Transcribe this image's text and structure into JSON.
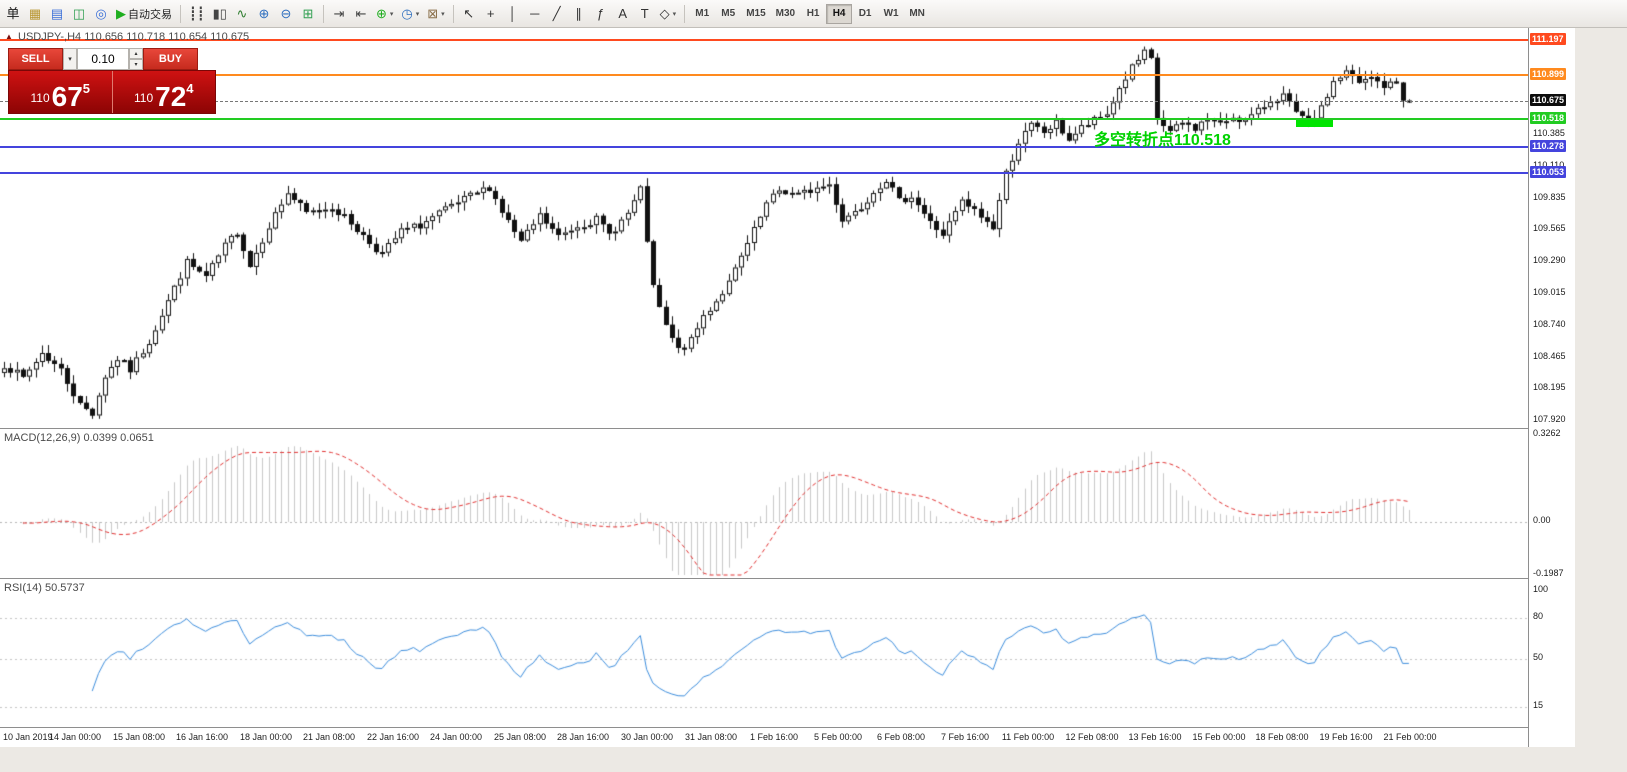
{
  "toolbar": {
    "auto_trading_label": "自动交易",
    "icon_groups": [
      {
        "items": [
          {
            "name": "new-order-button",
            "glyph": "单",
            "color": "#1a1a1a"
          },
          {
            "name": "new-chart-icon",
            "glyph": "▦",
            "color": "#b8952f"
          },
          {
            "name": "profiles-icon",
            "glyph": "▤",
            "color": "#3a6fd8"
          },
          {
            "name": "market-watch-icon",
            "glyph": "◫",
            "color": "#2e9e4f"
          },
          {
            "name": "navigator-icon",
            "glyph": "◎",
            "color": "#3a6fd8"
          },
          {
            "name": "auto-trading-button",
            "glyph": "▶",
            "color": "#1fae1f",
            "label": "自动交易"
          }
        ]
      },
      {
        "items": [
          {
            "name": "bar-chart-icon",
            "glyph": "┋┋",
            "color": "#444444"
          },
          {
            "name": "candle-chart-icon",
            "glyph": "▮▯",
            "color": "#444444"
          },
          {
            "name": "line-chart-icon",
            "glyph": "∿",
            "color": "#2f7d2f"
          },
          {
            "name": "zoom-in-icon",
            "glyph": "⊕",
            "color": "#2f6fbf"
          },
          {
            "name": "zoom-out-icon",
            "glyph": "⊖",
            "color": "#2f6fbf"
          },
          {
            "name": "grid-icon",
            "glyph": "⊞",
            "color": "#2e9e4f"
          }
        ]
      },
      {
        "items": [
          {
            "name": "auto-scroll-icon",
            "glyph": "⇥",
            "color": "#444444"
          },
          {
            "name": "chart-shift-icon",
            "glyph": "⇤",
            "color": "#444444"
          },
          {
            "name": "indicators-icon",
            "glyph": "⊕",
            "color": "#1fae1f",
            "dropdown": true
          },
          {
            "name": "periods-icon",
            "glyph": "◷",
            "color": "#2f6fbf",
            "dropdown": true
          },
          {
            "name": "templates-icon",
            "glyph": "⊠",
            "color": "#8a6f4a",
            "dropdown": true
          }
        ]
      },
      {
        "items": [
          {
            "name": "cursor-icon",
            "glyph": "↖",
            "color": "#333333"
          },
          {
            "name": "crosshair-icon",
            "glyph": "+",
            "color": "#333333"
          },
          {
            "name": "vertical-line-icon",
            "glyph": "│",
            "color": "#333333"
          },
          {
            "name": "horizontal-line-icon",
            "glyph": "─",
            "color": "#333333"
          },
          {
            "name": "trendline-icon",
            "glyph": "╱",
            "color": "#333333"
          },
          {
            "name": "channel-icon",
            "glyph": "∥",
            "color": "#333333"
          },
          {
            "name": "fibonacci-icon",
            "glyph": "ƒ",
            "color": "#333333"
          },
          {
            "name": "text-icon",
            "glyph": "A",
            "color": "#333333"
          },
          {
            "name": "arrows-icon",
            "glyph": "T",
            "color": "#333333"
          },
          {
            "name": "shapes-icon",
            "glyph": "◇",
            "color": "#333333",
            "dropdown": true
          }
        ]
      }
    ],
    "timeframes": [
      "M1",
      "M5",
      "M15",
      "M30",
      "H1",
      "H4",
      "D1",
      "W1",
      "MN"
    ],
    "active_timeframe": "H4",
    "right_icons": [
      {
        "name": "search-icon",
        "css": "lens"
      },
      {
        "name": "chart-profile-icon",
        "glyph": "▣",
        "color": "#3a6fd8"
      },
      {
        "name": "fullscreen-icon",
        "glyph": "▢",
        "color": "#555555"
      }
    ]
  },
  "chart": {
    "title": "USDJPY-,H4 110.656 110.718 110.654 110.675",
    "trade_panel": {
      "sell_label": "SELL",
      "buy_label": "BUY",
      "volume": "0.10",
      "sell": {
        "prefix": "110",
        "big": "67",
        "sup": "5"
      },
      "buy": {
        "prefix": "110",
        "big": "72",
        "sup": "4"
      }
    },
    "annotation": {
      "text": "多空转折点110.518",
      "color": "#00d200",
      "bar": 173,
      "price": 110.455
    },
    "green_marker": {
      "bar_start": 205,
      "bar_end": 210,
      "price": 110.505,
      "color": "#00e400"
    },
    "levels": [
      {
        "price": "111.197",
        "value": 111.197,
        "color": "#ff4a1f"
      },
      {
        "price": "110.899",
        "value": 110.899,
        "color": "#ff8a1e"
      },
      {
        "price": "110.518",
        "value": 110.518,
        "color": "#22cc22"
      },
      {
        "price": "110.278",
        "value": 110.278,
        "color": "#4444dd"
      },
      {
        "price": "110.053",
        "value": 110.053,
        "color": "#4444dd"
      }
    ],
    "current_price": {
      "price": "110.675",
      "value": 110.675,
      "bg": "#0d0d0d"
    },
    "price_axis": {
      "top_price": 111.197,
      "bottom_price": 107.92,
      "ticks": [
        {
          "label": "110.385",
          "value": 110.385
        },
        {
          "label": "110.110",
          "value": 110.11
        },
        {
          "label": "109.835",
          "value": 109.835
        },
        {
          "label": "109.565",
          "value": 109.565
        },
        {
          "label": "109.290",
          "value": 109.29
        },
        {
          "label": "109.015",
          "value": 109.015
        },
        {
          "label": "108.740",
          "value": 108.74
        },
        {
          "label": "108.465",
          "value": 108.465
        },
        {
          "label": "108.195",
          "value": 108.195
        },
        {
          "label": "107.920",
          "value": 107.92
        }
      ]
    },
    "chart_data": {
      "type": "candlestick",
      "symbol": "USDJPY",
      "timeframe": "H4",
      "bars": 224,
      "visible_range": {
        "high": 111.197,
        "low": 107.92
      },
      "ohlc_current": {
        "open": 110.656,
        "high": 110.718,
        "low": 110.654,
        "close": 110.675
      },
      "anchors": [
        [
          0,
          108.4
        ],
        [
          3,
          108.28
        ],
        [
          6,
          108.5
        ],
        [
          9,
          108.35
        ],
        [
          12,
          108.05
        ],
        [
          14,
          107.98
        ],
        [
          16,
          108.3
        ],
        [
          18,
          108.45
        ],
        [
          20,
          108.35
        ],
        [
          23,
          108.6
        ],
        [
          26,
          108.95
        ],
        [
          29,
          109.28
        ],
        [
          32,
          109.15
        ],
        [
          35,
          109.42
        ],
        [
          37,
          109.55
        ],
        [
          39,
          109.25
        ],
        [
          42,
          109.6
        ],
        [
          45,
          109.88
        ],
        [
          48,
          109.7
        ],
        [
          52,
          109.76
        ],
        [
          55,
          109.62
        ],
        [
          58,
          109.45
        ],
        [
          60,
          109.35
        ],
        [
          63,
          109.55
        ],
        [
          66,
          109.6
        ],
        [
          69,
          109.7
        ],
        [
          73,
          109.82
        ],
        [
          77,
          109.93
        ],
        [
          79,
          109.72
        ],
        [
          82,
          109.45
        ],
        [
          85,
          109.68
        ],
        [
          88,
          109.5
        ],
        [
          91,
          109.6
        ],
        [
          94,
          109.65
        ],
        [
          96,
          109.52
        ],
        [
          99,
          109.7
        ],
        [
          101,
          109.9
        ],
        [
          103,
          109.05
        ],
        [
          105,
          108.72
        ],
        [
          107,
          108.52
        ],
        [
          109,
          108.6
        ],
        [
          111,
          108.82
        ],
        [
          113,
          108.95
        ],
        [
          115,
          109.1
        ],
        [
          117,
          109.32
        ],
        [
          119,
          109.55
        ],
        [
          121,
          109.78
        ],
        [
          123,
          109.9
        ],
        [
          126,
          109.86
        ],
        [
          129,
          109.92
        ],
        [
          131,
          109.95
        ],
        [
          133,
          109.65
        ],
        [
          136,
          109.76
        ],
        [
          138,
          109.9
        ],
        [
          140,
          110.0
        ],
        [
          142,
          109.8
        ],
        [
          144,
          109.86
        ],
        [
          147,
          109.62
        ],
        [
          149,
          109.52
        ],
        [
          152,
          109.8
        ],
        [
          154,
          109.72
        ],
        [
          157,
          109.58
        ],
        [
          159,
          110.05
        ],
        [
          161,
          110.32
        ],
        [
          163,
          110.46
        ],
        [
          165,
          110.4
        ],
        [
          167,
          110.48
        ],
        [
          169,
          110.34
        ],
        [
          171,
          110.44
        ],
        [
          173,
          110.5
        ],
        [
          175,
          110.56
        ],
        [
          177,
          110.78
        ],
        [
          179,
          110.96
        ],
        [
          181,
          111.08
        ],
        [
          182,
          111.02
        ],
        [
          183,
          110.52
        ],
        [
          185,
          110.4
        ],
        [
          187,
          110.48
        ],
        [
          189,
          110.44
        ],
        [
          191,
          110.52
        ],
        [
          193,
          110.47
        ],
        [
          195,
          110.54
        ],
        [
          197,
          110.5
        ],
        [
          199,
          110.58
        ],
        [
          201,
          110.68
        ],
        [
          203,
          110.72
        ],
        [
          205,
          110.56
        ],
        [
          207,
          110.48
        ],
        [
          209,
          110.6
        ],
        [
          211,
          110.84
        ],
        [
          213,
          110.92
        ],
        [
          215,
          110.82
        ],
        [
          217,
          110.87
        ],
        [
          219,
          110.8
        ],
        [
          221,
          110.83
        ],
        [
          222,
          110.7
        ],
        [
          223,
          110.675
        ]
      ]
    }
  },
  "macd": {
    "label": "MACD(12,26,9) 0.0399 0.0651",
    "fast": 12,
    "slow": 26,
    "smoothing": 9,
    "histogram_color": "#c8c8c8",
    "signal_color": "#e03030",
    "axis": [
      {
        "label": "0.3262",
        "value": 0.3262
      },
      {
        "label": "0.00",
        "value": 0
      },
      {
        "label": "-0.1987",
        "value": -0.1987
      }
    ]
  },
  "rsi": {
    "label": "RSI(14) 50.5737",
    "period": 14,
    "line_color": "#3c8ddc",
    "levels": [
      {
        "label": "100",
        "value": 100
      },
      {
        "label": "80",
        "value": 80
      },
      {
        "label": "50",
        "value": 50
      },
      {
        "label": "15",
        "value": 15
      }
    ]
  },
  "time_axis": {
    "labels": [
      "10 Jan 2019",
      "14 Jan 00:00",
      "15 Jan 08:00",
      "16 Jan 16:00",
      "18 Jan 00:00",
      "21 Jan 08:00",
      "22 Jan 16:00",
      "24 Jan 00:00",
      "25 Jan 08:00",
      "28 Jan 16:00",
      "30 Jan 00:00",
      "31 Jan 08:00",
      "1 Feb 16:00",
      "5 Feb 00:00",
      "6 Feb 08:00",
      "7 Feb 16:00",
      "11 Feb 00:00",
      "12 Feb 08:00",
      "13 Feb 16:00",
      "15 Feb 00:00",
      "18 Feb 08:00",
      "19 Feb 16:00",
      "21 Feb 00:00"
    ]
  }
}
